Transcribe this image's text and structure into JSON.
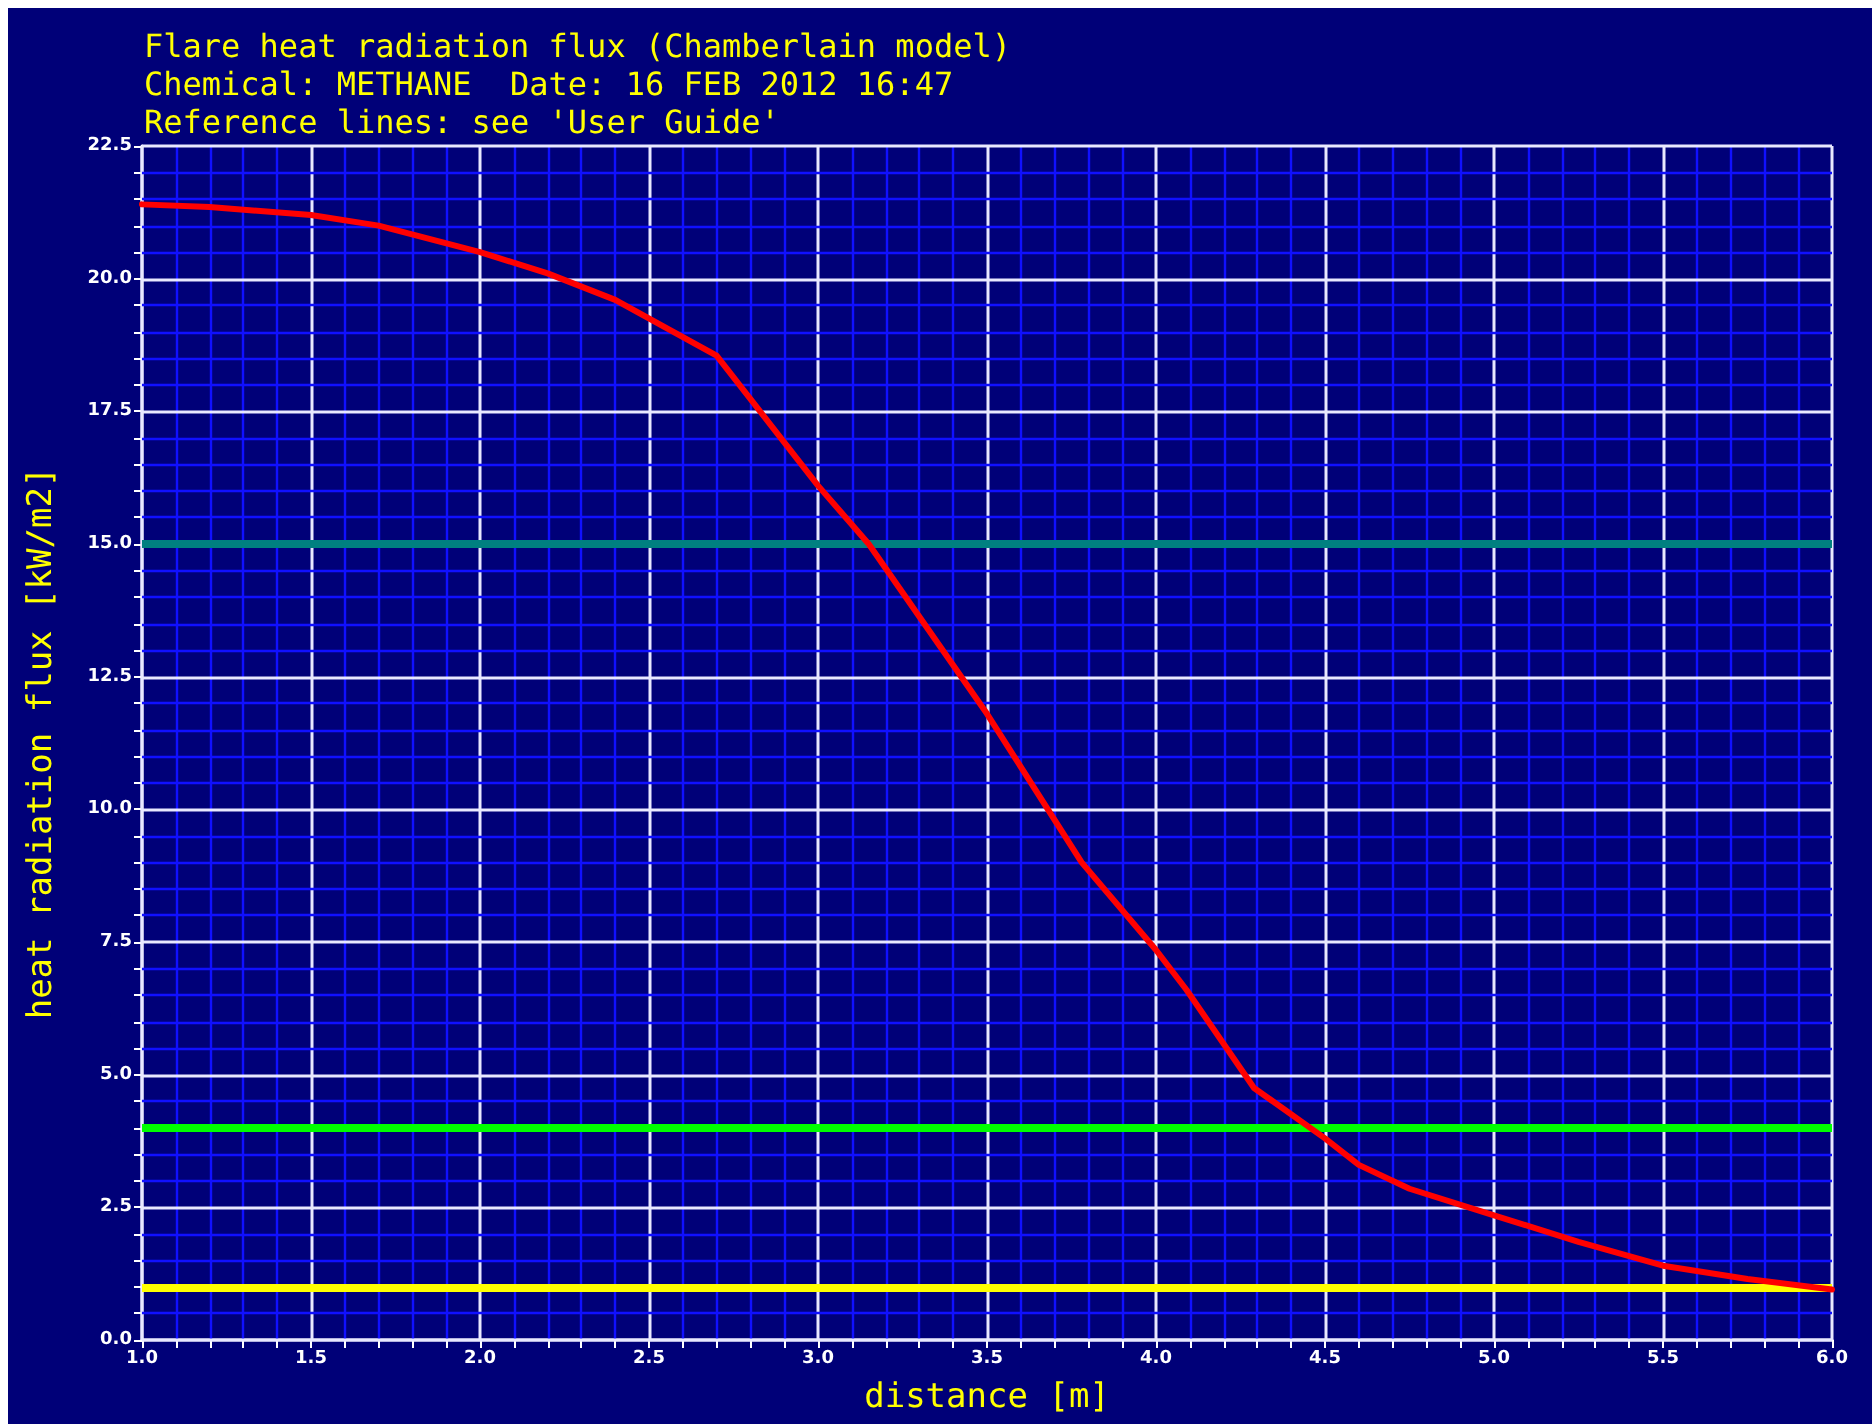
{
  "chart_data": {
    "type": "line",
    "title": "Flare heat radiation flux (Chamberlain model)",
    "subtitle": "Chemical: METHANE  Date: 16 FEB 2012 16:47",
    "annotations": [
      "Reference lines: see 'User Guide'"
    ],
    "xlabel": "distance [m]",
    "ylabel": "heat radiation flux [kW/m2]",
    "series": [
      {
        "color": "#ff0000",
        "x": [
          1.0,
          1.2,
          1.5,
          1.7,
          2.0,
          2.2,
          2.4,
          2.7,
          3.0,
          3.15,
          3.5,
          3.78,
          4.0,
          4.09,
          4.29,
          4.5,
          4.6,
          4.75,
          5.0,
          5.25,
          5.5,
          5.75,
          6.0
        ],
        "values": [
          21.4,
          21.35,
          21.2,
          21.0,
          20.5,
          20.1,
          19.6,
          18.55,
          16.1,
          15.0,
          11.8,
          9.0,
          7.35,
          6.6,
          4.75,
          3.8,
          3.3,
          2.85,
          2.35,
          1.85,
          1.4,
          1.15,
          0.95
        ]
      }
    ],
    "xlim": [
      1.0,
      6.0
    ],
    "xticks": [
      {
        "value": 1,
        "label": "1.0"
      },
      {
        "value": 1.1,
        "label": null
      },
      {
        "value": 1.2,
        "label": null
      },
      {
        "value": 1.3,
        "label": null
      },
      {
        "value": 1.4,
        "label": null
      },
      1.5,
      {
        "value": 1.6,
        "label": null
      },
      {
        "value": 1.7,
        "label": null
      },
      {
        "value": 1.8,
        "label": null
      },
      {
        "value": 1.9,
        "label": null
      },
      {
        "value": 2,
        "label": "2.0"
      },
      {
        "value": 2.1,
        "label": null
      },
      {
        "value": 2.2,
        "label": null
      },
      {
        "value": 2.3,
        "label": null
      },
      {
        "value": 2.4,
        "label": null
      },
      2.5,
      {
        "value": 2.6,
        "label": null
      },
      {
        "value": 2.7,
        "label": null
      },
      {
        "value": 2.8,
        "label": null
      },
      {
        "value": 2.9,
        "label": null
      },
      {
        "value": 3,
        "label": "3.0"
      },
      {
        "value": 3.1,
        "label": null
      },
      {
        "value": 3.2,
        "label": null
      },
      {
        "value": 3.3,
        "label": null
      },
      {
        "value": 3.4,
        "label": null
      },
      3.5,
      {
        "value": 3.6,
        "label": null
      },
      {
        "value": 3.7,
        "label": null
      },
      {
        "value": 3.8,
        "label": null
      },
      {
        "value": 3.9,
        "label": null
      },
      {
        "value": 4,
        "label": "4.0"
      },
      {
        "value": 4.1,
        "label": null
      },
      {
        "value": 4.2,
        "label": null
      },
      {
        "value": 4.3,
        "label": null
      },
      {
        "value": 4.4,
        "label": null
      },
      4.5,
      {
        "value": 4.6,
        "label": null
      },
      {
        "value": 4.7,
        "label": null
      },
      {
        "value": 4.8,
        "label": null
      },
      {
        "value": 4.9,
        "label": null
      },
      {
        "value": 5,
        "label": "5.0"
      },
      {
        "value": 5.1,
        "label": null
      },
      {
        "value": 5.2,
        "label": null
      },
      {
        "value": 5.3,
        "label": null
      },
      {
        "value": 5.4,
        "label": null
      },
      5.5,
      {
        "value": 5.6,
        "label": null
      },
      {
        "value": 5.7,
        "label": null
      },
      {
        "value": 5.8,
        "label": null
      },
      {
        "value": 5.9,
        "label": null
      },
      {
        "value": 6,
        "label": "6.0"
      }
    ],
    "ylim": [
      0,
      22.5
    ],
    "yticks": [
      {
        "value": 0,
        "label": "0.0"
      },
      {
        "value": 0.5,
        "label": null
      },
      {
        "value": 1,
        "label": null
      },
      {
        "value": 1.5,
        "label": null
      },
      {
        "value": 2,
        "label": null
      },
      2.5,
      {
        "value": 3,
        "label": null
      },
      {
        "value": 3.5,
        "label": null
      },
      {
        "value": 4,
        "label": null
      },
      {
        "value": 4.5,
        "label": null
      },
      {
        "value": 5,
        "label": "5.0"
      },
      {
        "value": 5.5,
        "label": null
      },
      {
        "value": 6,
        "label": null
      },
      {
        "value": 6.5,
        "label": null
      },
      {
        "value": 7,
        "label": null
      },
      7.5,
      {
        "value": 8,
        "label": null
      },
      {
        "value": 8.5,
        "label": null
      },
      {
        "value": 9,
        "label": null
      },
      {
        "value": 9.5,
        "label": null
      },
      {
        "value": 10,
        "label": "10.0"
      },
      {
        "value": 10.5,
        "label": null
      },
      {
        "value": 11,
        "label": null
      },
      {
        "value": 11.5,
        "label": null
      },
      {
        "value": 12,
        "label": null
      },
      12.5,
      {
        "value": 13,
        "label": null
      },
      {
        "value": 13.5,
        "label": null
      },
      {
        "value": 14,
        "label": null
      },
      {
        "value": 14.5,
        "label": null
      },
      {
        "value": 15,
        "label": "15.0"
      },
      {
        "value": 15.5,
        "label": null
      },
      {
        "value": 16,
        "label": null
      },
      {
        "value": 16.5,
        "label": null
      },
      {
        "value": 17,
        "label": null
      },
      17.5,
      {
        "value": 18,
        "label": null
      },
      {
        "value": 18.5,
        "label": null
      },
      {
        "value": 19,
        "label": null
      },
      {
        "value": 19.5,
        "label": null
      },
      {
        "value": 20,
        "label": "20.0"
      },
      {
        "value": 20.5,
        "label": null
      },
      {
        "value": 21,
        "label": null
      },
      {
        "value": 21.5,
        "label": null
      },
      {
        "value": 22,
        "label": null
      },
      22.5
    ],
    "ref_lines": [
      {
        "axis": "y",
        "value": 15,
        "color": "#008080"
      },
      {
        "axis": "y",
        "value": 4,
        "color": "#00ff00"
      },
      {
        "axis": "y",
        "value": 1,
        "color": "#ffff00"
      }
    ],
    "grid": true,
    "marker": "none",
    "line_style": "solid"
  }
}
